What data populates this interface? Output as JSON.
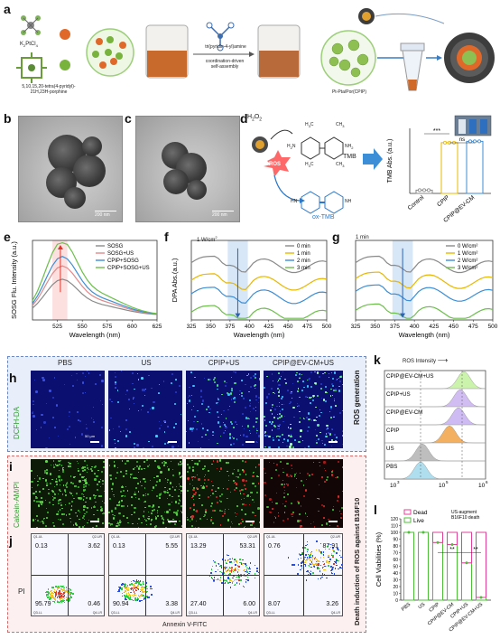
{
  "panel_a": {
    "label": "a",
    "reagent1": "K",
    "reagent1_sub": "2",
    "reagent1_rest": "PtCl",
    "reagent1_sub2": "4",
    "reagent2_line1": "5,10,15,20-tetra(4-pyridyl)-",
    "reagent2_line2": "21H,23H-porphine",
    "ligand": "tri(pyridin-4-yl)amine",
    "step": "coordination-driven",
    "step2": "self-assembly",
    "product": "Pt-Pta/Por(CPIP)"
  },
  "panel_b": {
    "label": "b",
    "scale": "200 nm"
  },
  "panel_c": {
    "label": "c",
    "scale": "200 nm"
  },
  "panel_d": {
    "label": "d",
    "h2o2": "H",
    "h2o2_sub": "2",
    "h2o2_rest": "O",
    "h2o2_sub2": "2",
    "ros": "ROS",
    "tmb": "TMB",
    "oxtmb": "ox-TMB",
    "ch3": "CH",
    "ch3_sub": "3",
    "h3c": "H",
    "h3c_sub": "3",
    "h3c_rest": "C",
    "h2n": "H",
    "h2n_sub": "2",
    "h2n_rest": "N",
    "nh2": "NH",
    "nh2_sub": "2",
    "hn": "HN",
    "nh": "NH",
    "signif1": "***",
    "signif2": "ns"
  },
  "panel_e": {
    "label": "e"
  },
  "panel_f": {
    "label": "f",
    "inset": "1 W/cm",
    "inset_sup": "2"
  },
  "panel_g": {
    "label": "g",
    "inset": "1 min"
  },
  "panel_h": {
    "label": "h",
    "row_label": "DCFH-DA",
    "side_label": "ROS generation",
    "cols": [
      "PBS",
      "US",
      "CPIP+US",
      "CPIP@EV-CM+US"
    ],
    "scale": "50 μm"
  },
  "panel_i": {
    "label": "i",
    "row_label": "Calcein-AM/PI",
    "side_label": "Death induction of ROS against B16F10"
  },
  "panel_j": {
    "label": "j",
    "ylabel": "PI",
    "xlabel": "Annexin V-FITC",
    "plots": [
      {
        "ul": "0.13",
        "ur": "3.62",
        "ll": "95.79",
        "lr": "0.46"
      },
      {
        "ul": "0.13",
        "ur": "5.55",
        "ll": "90.94",
        "lr": "3.38"
      },
      {
        "ul": "13.29",
        "ur": "53.31",
        "ll": "27.40",
        "lr": "6.00"
      },
      {
        "ul": "0.76",
        "ur": "87.91",
        "ll": "8.07",
        "lr": "3.26"
      }
    ],
    "quad_heads": [
      "Q1-UL",
      "Q2-UR",
      "Q3-LL",
      "Q4-LR"
    ]
  },
  "panel_k": {
    "label": "k",
    "title": "ROS Intensity",
    "arrow": "⟶",
    "tick_labels": [
      "10",
      "10",
      "10"
    ],
    "tick_sups": [
      "3",
      "5",
      "6"
    ],
    "colors": [
      "#c6f2a2",
      "#cdb6f0",
      "#c9b4f2",
      "#f3a850",
      "#b8b8b8",
      "#a7dcee"
    ]
  },
  "panel_l": {
    "label": "l",
    "legend_note1": "US-augment",
    "legend_note2": "B16F10 death",
    "sig": "**"
  },
  "chart_data": [
    {
      "type": "bar",
      "title": "",
      "ylabel": "TMB Abs. (a.u.)",
      "categories": [
        "Control",
        "CPIP",
        "CPIP@EV-CM"
      ],
      "values": [
        0.05,
        0.78,
        0.8
      ],
      "colors": [
        "#8a8a8a",
        "#e8b800",
        "#3c8ed6"
      ]
    },
    {
      "type": "line",
      "xlabel": "Wavelength (nm)",
      "ylabel": "SOSG Flu. Intensity (a.u.)",
      "xlim": [
        500,
        625
      ],
      "x_ticks": [
        525,
        550,
        575,
        600,
        625
      ],
      "series": [
        {
          "name": "SOSG",
          "color": "#8a8a8a"
        },
        {
          "name": "SOSG+US",
          "color": "#e08a8a"
        },
        {
          "name": "CPIP+SOSG",
          "color": "#3c8ed6"
        },
        {
          "name": "CPIP+SOSG+US",
          "color": "#6cbf4a"
        }
      ]
    },
    {
      "type": "line",
      "xlabel": "Wavelength (nm)",
      "ylabel": "DPA Abs.(a.u.)",
      "xlim": [
        325,
        500
      ],
      "x_ticks": [
        325,
        350,
        375,
        400,
        425,
        450,
        475,
        500
      ],
      "series": [
        {
          "name": "0 min",
          "color": "#8a8a8a"
        },
        {
          "name": "1 min",
          "color": "#e8b800"
        },
        {
          "name": "2 min",
          "color": "#3c8ed6"
        },
        {
          "name": "3 min",
          "color": "#6cbf4a"
        }
      ]
    },
    {
      "type": "line",
      "xlabel": "Wavelength (nm)",
      "ylabel": "",
      "xlim": [
        325,
        500
      ],
      "x_ticks": [
        325,
        350,
        375,
        400,
        425,
        450,
        475,
        500
      ],
      "series": [
        {
          "name": "0 W/cm²",
          "color": "#8a8a8a"
        },
        {
          "name": "1 W/cm²",
          "color": "#e8b800"
        },
        {
          "name": "2 W/cm²",
          "color": "#3c8ed6"
        },
        {
          "name": "3 W/cm²",
          "color": "#6cbf4a"
        }
      ]
    },
    {
      "type": "bar",
      "ylabel": "Cell Viabilities (%)",
      "ylim": [
        0,
        120
      ],
      "y_ticks": [
        0,
        10,
        20,
        30,
        40,
        50,
        60,
        70,
        80,
        90,
        100,
        110,
        120
      ],
      "categories": [
        "PBS",
        "US",
        "CPIP",
        "CPIP@EV-CM",
        "CPIP+US",
        "CPIP@EV-CM+US"
      ],
      "series": [
        {
          "name": "Dead",
          "values": [
            0,
            0,
            15,
            18,
            45,
            96
          ]
        },
        {
          "name": "Live",
          "values": [
            100,
            100,
            85,
            82,
            55,
            4
          ]
        }
      ]
    }
  ]
}
